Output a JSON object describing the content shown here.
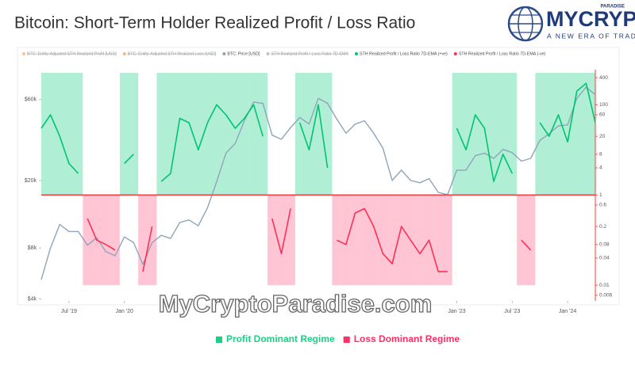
{
  "chart_data": {
    "type": "line",
    "title": "Bitcoin: Short-Term Holder Realized Profit / Loss Ratio",
    "logo": {
      "name": "MYCRYPTO",
      "tag": "PARADISE",
      "slogan": "A NEW ERA OF TRADING"
    },
    "watermark": "MyCryptoParadise.com",
    "hidden_series": [
      {
        "name": "BTC: Entity-Adjusted STH Realized Profit [USD]",
        "color": "#f0a04b"
      },
      {
        "name": "BTC: Entity-Adjusted STH Realized Loss [USD]",
        "color": "#f08040"
      },
      {
        "name": "STH Realized Profit / Loss Ratio 7D-EMA",
        "color": "#999999"
      }
    ],
    "x": [
      "2019-04",
      "2019-05",
      "2019-06",
      "2019-07",
      "2019-08",
      "2019-09",
      "2019-10",
      "2019-11",
      "2019-12",
      "2020-01",
      "2020-02",
      "2020-03",
      "2020-04",
      "2020-05",
      "2020-06",
      "2020-07",
      "2020-08",
      "2020-09",
      "2020-10",
      "2020-11",
      "2020-12",
      "2021-01",
      "2021-02",
      "2021-03",
      "2021-04",
      "2021-05",
      "2021-06",
      "2021-07",
      "2021-08",
      "2021-09",
      "2021-10",
      "2021-11",
      "2021-12",
      "2022-01",
      "2022-02",
      "2022-03",
      "2022-04",
      "2022-05",
      "2022-06",
      "2022-07",
      "2022-08",
      "2022-09",
      "2022-10",
      "2022-11",
      "2022-12",
      "2023-01",
      "2023-02",
      "2023-03",
      "2023-04",
      "2023-05",
      "2023-06",
      "2023-07",
      "2023-08",
      "2023-09",
      "2023-10",
      "2023-11",
      "2023-12",
      "2024-01",
      "2024-02",
      "2024-03",
      "2024-04"
    ],
    "xlim": [
      "2019-04",
      "2024-04"
    ],
    "xticks": [
      {
        "value": "2019-07",
        "label": "Jul '19"
      },
      {
        "value": "2020-01",
        "label": "Jan '20"
      },
      {
        "value": "2023-01",
        "label": "Jan '23"
      },
      {
        "value": "2023-07",
        "label": "Jul '23"
      },
      {
        "value": "2024-01",
        "label": "Jan '24"
      }
    ],
    "ylim": [
      3900,
      90000
    ],
    "yscale": "log",
    "yticks": [
      {
        "value": 60000,
        "label": "$60k"
      },
      {
        "value": 20000,
        "label": "$20k"
      },
      {
        "value": 8000,
        "label": "$8k"
      },
      {
        "value": 4000,
        "label": "$4k"
      }
    ],
    "y2lim": [
      0.0045,
      600
    ],
    "y2scale": "log",
    "y2ticks": [
      400,
      100,
      60,
      20,
      8,
      4,
      1,
      0.6,
      0.2,
      0.08,
      0.04,
      0.01,
      0.006
    ],
    "threshold": 1,
    "threshold_color": "#ff3b3b",
    "series": [
      {
        "name": "BTC: Price [USD]",
        "color": "#8fa4b8",
        "values": [
          5200,
          8000,
          11000,
          10000,
          10000,
          8300,
          9200,
          7600,
          7200,
          9300,
          8600,
          6400,
          8600,
          9500,
          9100,
          11300,
          11700,
          10800,
          13800,
          19700,
          29000,
          33000,
          45000,
          58000,
          57000,
          37000,
          35000,
          41000,
          47000,
          43000,
          61000,
          57000,
          46000,
          38000,
          43000,
          45000,
          38000,
          31000,
          20000,
          23000,
          20000,
          19400,
          20500,
          17000,
          16500,
          23000,
          23000,
          28000,
          29000,
          27000,
          30500,
          29200,
          26000,
          27000,
          34500,
          37700,
          42000,
          42500,
          61000,
          71000,
          64000
        ]
      },
      {
        "name": "STH Realized Profit / Loss Ratio 7D-EMA (+ve)",
        "color": "#00c472",
        "axis": "y2",
        "values": [
          30,
          60,
          20,
          5,
          3,
          null,
          null,
          null,
          null,
          5,
          8,
          null,
          null,
          2,
          3,
          50,
          40,
          10,
          40,
          100,
          60,
          30,
          50,
          100,
          20,
          null,
          null,
          null,
          40,
          10,
          100,
          4,
          null,
          null,
          null,
          null,
          null,
          null,
          null,
          null,
          null,
          null,
          null,
          null,
          null,
          30,
          10,
          60,
          30,
          2,
          8,
          3,
          null,
          null,
          40,
          20,
          60,
          15,
          200,
          300,
          40
        ]
      },
      {
        "name": "STH Realized Profit / Loss Ratio 7D-EMA (-ve)",
        "color": "#ff2f55",
        "axis": "y2",
        "values": [
          null,
          null,
          null,
          null,
          null,
          0.3,
          0.1,
          0.08,
          0.06,
          null,
          null,
          0.02,
          0.2,
          null,
          null,
          null,
          null,
          null,
          null,
          null,
          null,
          null,
          null,
          null,
          null,
          0.3,
          0.05,
          0.5,
          null,
          null,
          null,
          null,
          0.1,
          0.08,
          0.4,
          0.5,
          0.2,
          0.05,
          0.03,
          0.2,
          0.1,
          0.05,
          0.1,
          0.02,
          0.02,
          null,
          null,
          null,
          null,
          null,
          null,
          null,
          0.1,
          0.06,
          null,
          null,
          null,
          null,
          null,
          null,
          null
        ]
      }
    ],
    "regimes": [
      {
        "name": "Profit Dominant Regime",
        "color": "#1ecf86"
      },
      {
        "name": "Loss Dominant Regime",
        "color": "#ff2f64"
      }
    ]
  }
}
